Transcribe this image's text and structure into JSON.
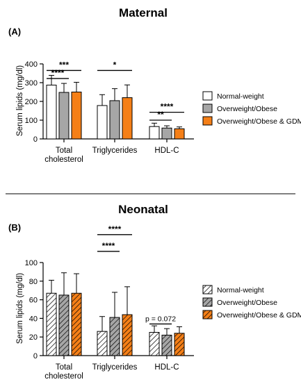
{
  "chart_data": [
    {
      "type": "bar",
      "title": "Maternal",
      "panel": "(A)",
      "ylabel": "Serum lipids (mg/dl)",
      "ylim": [
        0,
        400
      ],
      "yticks": [
        0,
        100,
        200,
        300,
        400
      ],
      "categories": [
        [
          "Total",
          "cholesterol"
        ],
        [
          "Triglycerides"
        ],
        [
          "HDL-C"
        ]
      ],
      "hatched": false,
      "series": [
        {
          "name": "Normal-weight",
          "color": "#ffffff",
          "values": [
            287,
            178,
            66
          ],
          "errors": [
            52,
            58,
            18
          ]
        },
        {
          "name": "Overweight/Obese",
          "color": "#a6a6a6",
          "values": [
            248,
            204,
            58
          ],
          "errors": [
            48,
            64,
            12
          ]
        },
        {
          "name": "Overweight/Obese & GDM",
          "color": "#f57f17",
          "values": [
            250,
            220,
            54
          ],
          "errors": [
            52,
            68,
            10
          ]
        }
      ],
      "significance": [
        {
          "label": "***",
          "cat": 0,
          "from": 0,
          "to": 2,
          "y": 365,
          "kind": "star"
        },
        {
          "label": "****",
          "cat": 0,
          "from": 0,
          "to": 1,
          "y": 322,
          "kind": "star"
        },
        {
          "label": "*",
          "cat": 1,
          "from": 0,
          "to": 2,
          "y": 365,
          "kind": "star"
        },
        {
          "label": "****",
          "cat": 2,
          "from": 0,
          "to": 2,
          "y": 142,
          "kind": "star"
        },
        {
          "label": "**",
          "cat": 2,
          "from": 0,
          "to": 1,
          "y": 100,
          "kind": "star"
        }
      ]
    },
    {
      "type": "bar",
      "title": "Neonatal",
      "panel": "(B)",
      "ylabel": "Serum lipids (mg/dl)",
      "ylim": [
        0,
        100
      ],
      "yticks": [
        0,
        20,
        40,
        60,
        80,
        100
      ],
      "categories": [
        [
          "Total",
          "cholesterol"
        ],
        [
          "Triglycerides"
        ],
        [
          "HDL-C"
        ]
      ],
      "hatched": true,
      "series": [
        {
          "name": "Normal-weight",
          "color": "#ffffff",
          "values": [
            67,
            26,
            25
          ],
          "errors": [
            14,
            16,
            7
          ]
        },
        {
          "name": "Overweight/Obese",
          "color": "#a6a6a6",
          "values": [
            65,
            41,
            22
          ],
          "errors": [
            24,
            27,
            7
          ]
        },
        {
          "name": "Overweight/Obese & GDM",
          "color": "#f57f17",
          "values": [
            67,
            44,
            24
          ],
          "errors": [
            21,
            30,
            7
          ]
        }
      ],
      "significance": [
        {
          "label": "****",
          "cat": 1,
          "from": 0,
          "to": 2,
          "y": 130,
          "kind": "star"
        },
        {
          "label": "****",
          "cat": 1,
          "from": 0,
          "to": 1,
          "y": 112,
          "kind": "star"
        },
        {
          "label": "p = 0.072",
          "cat": 2,
          "from": 0,
          "to": 1,
          "y": 34,
          "kind": "text"
        }
      ]
    }
  ]
}
